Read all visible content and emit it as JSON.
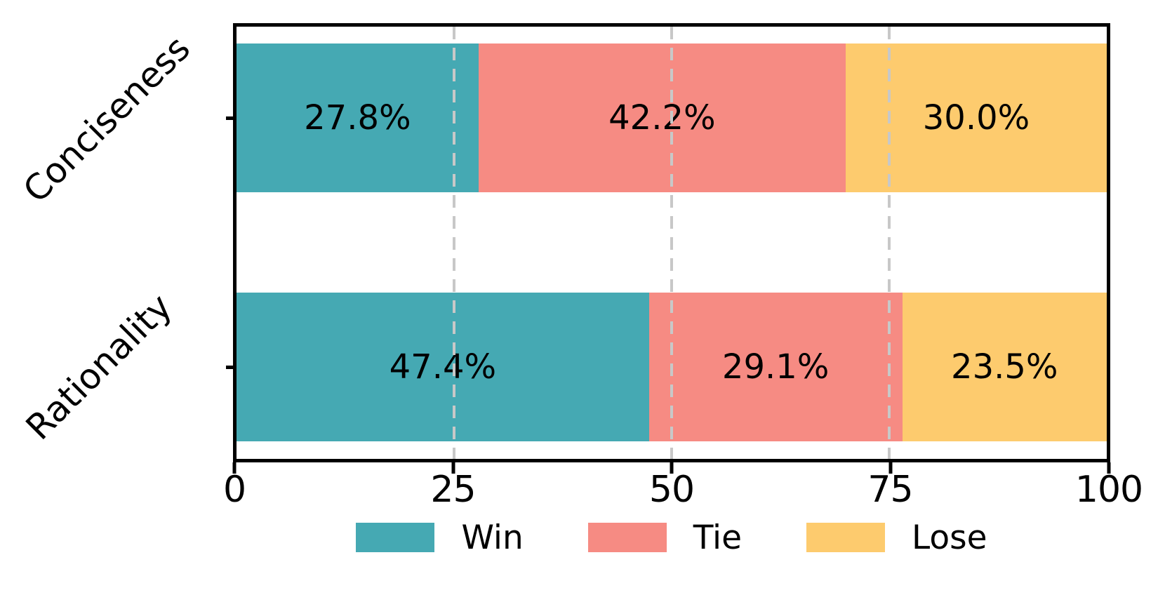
{
  "chart_data": {
    "type": "bar",
    "orientation": "horizontal_stacked",
    "title": "",
    "xlabel": "",
    "ylabel": "",
    "xlim": [
      0,
      100
    ],
    "x_ticks": [
      {
        "value": 0,
        "label": "0"
      },
      {
        "value": 25,
        "label": "25"
      },
      {
        "value": 50,
        "label": "50"
      },
      {
        "value": 75,
        "label": "75"
      },
      {
        "value": 100,
        "label": "100"
      }
    ],
    "gridline_values": [
      25,
      50,
      75
    ],
    "grid_style": "dashed-vertical",
    "legend_position": "bottom-center",
    "series": [
      {
        "name": "Win",
        "color": "#45a9b3"
      },
      {
        "name": "Tie",
        "color": "#f68b83"
      },
      {
        "name": "Lose",
        "color": "#fdcb6e"
      }
    ],
    "categories": [
      "Conciseness",
      "Rationality"
    ],
    "rows": [
      {
        "category": "Conciseness",
        "segments": [
          {
            "series": "Win",
            "value": 27.8,
            "label": "27.8%"
          },
          {
            "series": "Tie",
            "value": 42.2,
            "label": "42.2%"
          },
          {
            "series": "Lose",
            "value": 30.0,
            "label": "30.0%"
          }
        ]
      },
      {
        "category": "Rationality",
        "segments": [
          {
            "series": "Win",
            "value": 47.4,
            "label": "47.4%"
          },
          {
            "series": "Tie",
            "value": 29.1,
            "label": "29.1%"
          },
          {
            "series": "Lose",
            "value": 23.5,
            "label": "23.5%"
          }
        ]
      }
    ],
    "colors": {
      "spine": "#000000",
      "gridline": "#c8c8c8",
      "text": "#000000",
      "background": "#ffffff"
    }
  }
}
